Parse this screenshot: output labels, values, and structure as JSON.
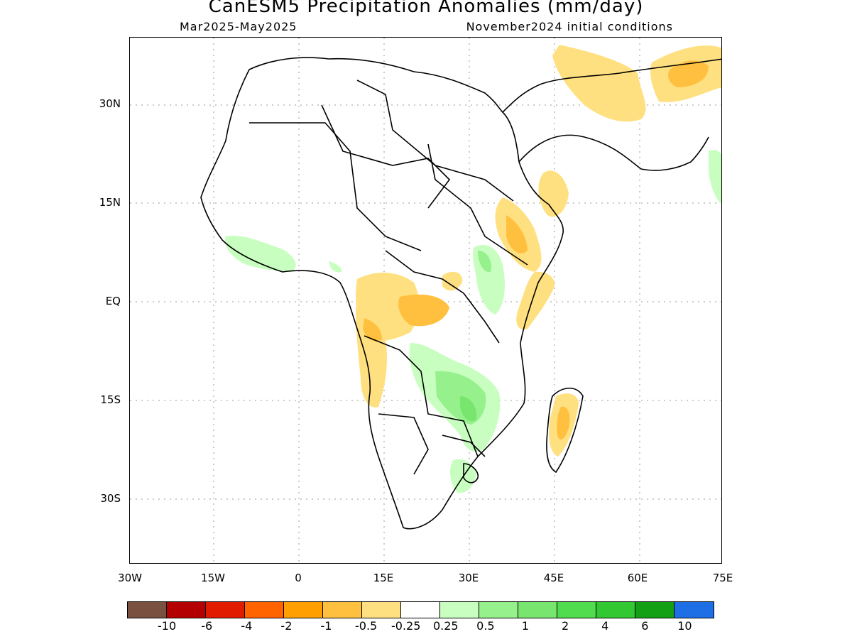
{
  "title": "CanESM5 Precipitation Anomalies (mm/day)",
  "subtitle_left": "Mar2025-May2025",
  "subtitle_right": "November2024 initial conditions",
  "lat_labels": [
    "30N",
    "15N",
    "EQ",
    "15S",
    "30S"
  ],
  "lon_labels": [
    "30W",
    "15W",
    "0",
    "15E",
    "30E",
    "45E",
    "60E",
    "75E"
  ],
  "legend": {
    "colors": [
      "#7a5040",
      "#b40000",
      "#e01b00",
      "#ff6400",
      "#ffa000",
      "#ffc040",
      "#ffe080",
      "#ffffff",
      "#c8ffc0",
      "#96f08c",
      "#78e66e",
      "#50dc4e",
      "#32c832",
      "#14a014",
      "#1e6ee6"
    ],
    "labels": [
      "-10",
      "-6",
      "-4",
      "-2",
      "-1",
      "-0.5",
      "-0.25",
      "0.25",
      "0.5",
      "1",
      "2",
      "4",
      "6",
      "10"
    ]
  }
}
